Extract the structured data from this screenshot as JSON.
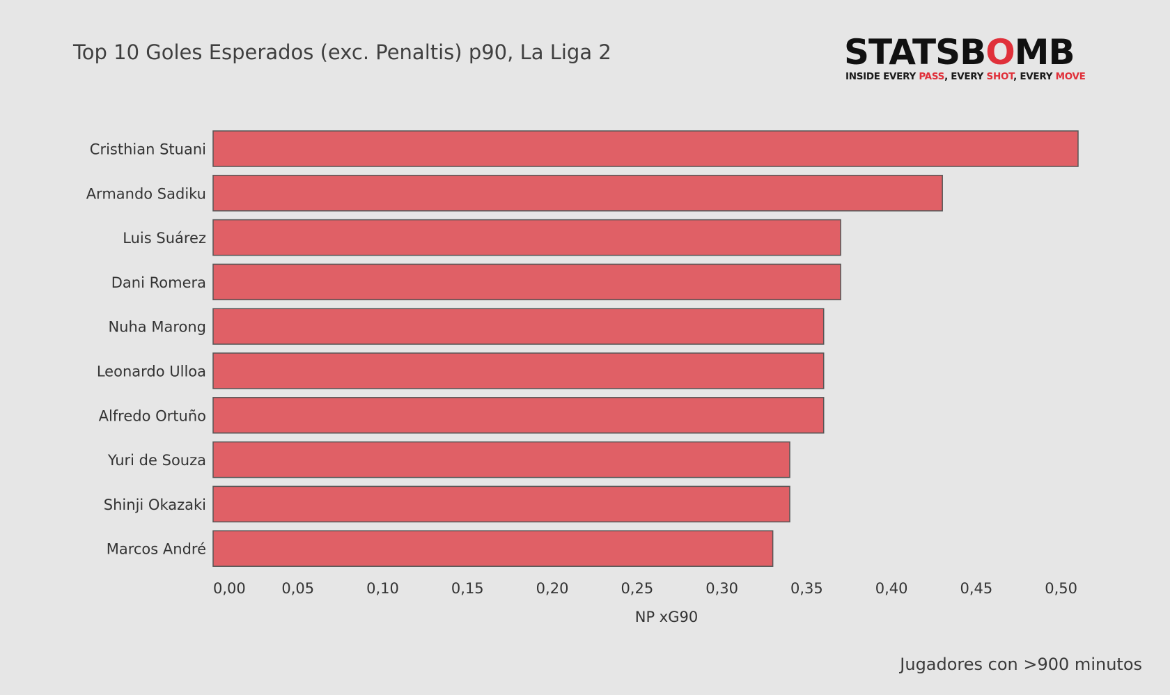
{
  "chart_data": {
    "type": "bar",
    "orientation": "horizontal",
    "title": "Top 10 Goles Esperados (exc. Penaltis) p90, La Liga 2",
    "xlabel": "NP xG90",
    "ylabel": "",
    "categories": [
      "Cristhian Stuani",
      "Armando Sadiku",
      "Luis Suárez",
      "Dani Romera",
      "Nuha Marong",
      "Leonardo Ulloa",
      "Alfredo Ortuño",
      "Yuri de Souza",
      "Shinji Okazaki",
      "Marcos André"
    ],
    "values": [
      0.51,
      0.43,
      0.37,
      0.37,
      0.36,
      0.36,
      0.36,
      0.34,
      0.34,
      0.33
    ],
    "xlim": [
      0,
      0.51
    ],
    "xticks": [
      0.0,
      0.05,
      0.1,
      0.15,
      0.2,
      0.25,
      0.3,
      0.35,
      0.4,
      0.45,
      0.5
    ],
    "xtick_labels": [
      "0,00",
      "0,05",
      "0,10",
      "0,15",
      "0,20",
      "0,25",
      "0,30",
      "0,35",
      "0,40",
      "0,45",
      "0,50"
    ],
    "grid": false,
    "legend": "none",
    "bar_color": "#e06066",
    "bar_edge_color": "#555555"
  },
  "logo": {
    "word_black_1": "STATSB",
    "word_red": "O",
    "word_black_2": "MB",
    "tagline_1": "INSIDE EVERY ",
    "tagline_pass": "PASS",
    "tagline_2": ", EVERY ",
    "tagline_shot": "SHOT",
    "tagline_3": ", EVERY ",
    "tagline_move": "MOVE"
  },
  "footnote": "Jugadores con >900 minutos",
  "colors": {
    "background": "#e6e6e6",
    "accent_red": "#e0303a"
  }
}
